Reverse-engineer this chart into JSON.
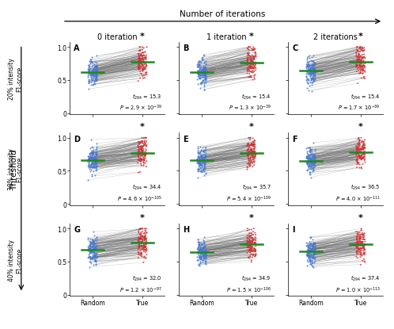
{
  "panels": [
    {
      "label": "A",
      "row": 0,
      "col": 0,
      "t": 15.3,
      "p_coef": 2.9,
      "p_exp": -39
    },
    {
      "label": "B",
      "row": 0,
      "col": 1,
      "t": 15.4,
      "p_coef": 1.3,
      "p_exp": -39
    },
    {
      "label": "C",
      "row": 0,
      "col": 2,
      "t": 15.4,
      "p_coef": 1.7,
      "p_exp": -39
    },
    {
      "label": "D",
      "row": 1,
      "col": 0,
      "t": 34.4,
      "p_coef": 4.6,
      "p_exp": -105
    },
    {
      "label": "E",
      "row": 1,
      "col": 1,
      "t": 35.7,
      "p_coef": 5.4,
      "p_exp": -109
    },
    {
      "label": "F",
      "row": 1,
      "col": 2,
      "t": 36.5,
      "p_coef": 4.0,
      "p_exp": -111
    },
    {
      "label": "G",
      "row": 2,
      "col": 0,
      "t": 32.0,
      "p_coef": 1.2,
      "p_exp": -97
    },
    {
      "label": "H",
      "row": 2,
      "col": 1,
      "t": 34.9,
      "p_coef": 1.5,
      "p_exp": -106
    },
    {
      "label": "I",
      "row": 2,
      "col": 2,
      "t": 37.4,
      "p_coef": 1.0,
      "p_exp": -113
    }
  ],
  "col_titles": [
    "0 iteration",
    "1 iteration",
    "2 iterations"
  ],
  "row_ylabels": [
    "20% intensity\nF1-score",
    "30% intensity\nF1-score",
    "40% intensity\nF1-score"
  ],
  "top_label": "Number of iterations",
  "left_label": "Threshold",
  "blue_color": "#4477CC",
  "red_color": "#CC3333",
  "green_color": "#228822",
  "n_points": 150,
  "random_means": [
    0.625,
    0.655,
    0.665
  ],
  "true_means": [
    0.775,
    0.775,
    0.775
  ],
  "rand_std": 0.1,
  "true_std": 0.08,
  "ylim": [
    -0.02,
    1.08
  ],
  "df": 294
}
